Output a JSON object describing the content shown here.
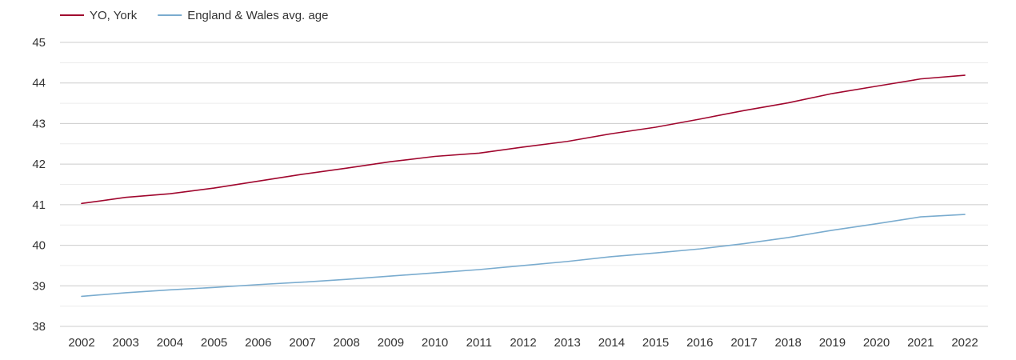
{
  "chart_data": {
    "type": "line",
    "x": [
      "2002",
      "2003",
      "2004",
      "2005",
      "2006",
      "2007",
      "2008",
      "2009",
      "2010",
      "2011",
      "2012",
      "2013",
      "2014",
      "2015",
      "2016",
      "2017",
      "2018",
      "2019",
      "2020",
      "2021",
      "2022"
    ],
    "ylim": [
      38,
      45
    ],
    "yticks": [
      38,
      39,
      40,
      41,
      42,
      43,
      44,
      45
    ],
    "grid": true,
    "legend_position": "top-left",
    "series": [
      {
        "name": "YO, York",
        "color": "#a0072e",
        "values": [
          41.03,
          41.18,
          41.27,
          41.41,
          41.58,
          41.75,
          41.9,
          42.06,
          42.19,
          42.27,
          42.42,
          42.56,
          42.75,
          42.91,
          43.11,
          43.32,
          43.51,
          43.74,
          43.92,
          44.1,
          44.19
        ]
      },
      {
        "name": "England & Wales avg. age",
        "color": "#7aaccf",
        "values": [
          38.74,
          38.83,
          38.9,
          38.96,
          39.03,
          39.09,
          39.16,
          39.24,
          39.32,
          39.4,
          39.5,
          39.6,
          39.72,
          39.81,
          39.91,
          40.04,
          40.19,
          40.37,
          40.53,
          40.7,
          40.76
        ]
      }
    ]
  }
}
